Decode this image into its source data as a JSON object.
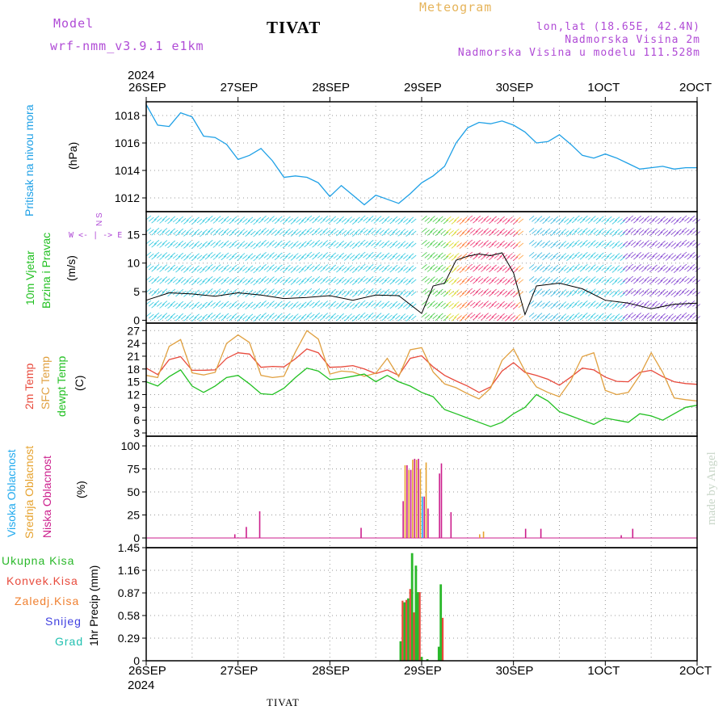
{
  "header": {
    "model_label": "Model",
    "model_name": "wrf-nmm_v3.9.1  e1km",
    "location": "TIVAT",
    "meteogram_label": "Meteogram",
    "coords": "lon,lat (18.65E, 42.4N)",
    "altitude": "Nadmorska Visina 2m",
    "model_altitude": "Nadmorska Visina u modelu 111.528m"
  },
  "footer": {
    "location": "TIVAT",
    "credit": "made by Angel"
  },
  "dates": {
    "year": "2024",
    "labels": [
      "26SEP",
      "27SEP",
      "28SEP",
      "29SEP",
      "30SEP",
      "1OCT",
      "2OCT"
    ]
  },
  "colors": {
    "pressure": "#1ea0e6",
    "temp2m": "#e84a3c",
    "sfc": "#e0a040",
    "dewpt": "#22c022",
    "high_cloud": "#22aaee",
    "mid_cloud": "#e6a22e",
    "low_cloud": "#cc1e8c",
    "total_precip": "#2ab82a",
    "conv_precip": "#e84a3c",
    "frozen": "#f08030",
    "snow": "#4040e0",
    "hail": "#20c0b0"
  },
  "panels": {
    "pressure": {
      "title": "Pritisak na nivou mora",
      "unit": "(hPa)",
      "ticks": [
        "1018",
        "1016",
        "1014",
        "1012"
      ]
    },
    "wind": {
      "title1": "10m Vjetar",
      "title2": "Brzina i Pravac",
      "unit": "(m/s)",
      "ticks": [
        "15",
        "10",
        "5",
        "0"
      ],
      "compass": "W <- | -> E",
      "compass_ns": "N  S"
    },
    "temp": {
      "title1": "2m Temp",
      "title2": "SFC Temp",
      "title3": "dewpt Temp",
      "unit": "(C)",
      "ticks": [
        "27",
        "24",
        "21",
        "18",
        "15",
        "12",
        "9",
        "6",
        "3"
      ]
    },
    "cloud": {
      "title1": "Visoka Oblacnost",
      "title2": "Srednja Oblacnost",
      "title3": "Niska Oblacnost",
      "unit": "(%)",
      "ticks": [
        "100",
        "75",
        "50",
        "25",
        "0"
      ]
    },
    "precip": {
      "title": "1hr Precip (mm)",
      "ticks": [
        "1.45",
        "1.16",
        "0.87",
        "0.58",
        "0.29",
        "0"
      ],
      "legend": [
        "Ukupna Kisa",
        "Konvek.Kisa",
        "Zaledj.Kisa",
        "Snijeg",
        "Grad"
      ]
    }
  },
  "chart_data": [
    {
      "type": "line",
      "title": "",
      "ylabel": "Pritisak na nivou mora (hPa)",
      "ylim": [
        1011,
        1019
      ],
      "x_hours": [
        0,
        3,
        6,
        9,
        12,
        15,
        18,
        21,
        24,
        27,
        30,
        33,
        36,
        39,
        42,
        45,
        48,
        51,
        54,
        57,
        60,
        63,
        66,
        69,
        72,
        75,
        78,
        81,
        84,
        87,
        90,
        93,
        96,
        99,
        102,
        105,
        108,
        111,
        114,
        117,
        120,
        123,
        126,
        129,
        132,
        135,
        138,
        141,
        144
      ],
      "series": [
        {
          "values": [
            1018.8,
            1017.3,
            1017.2,
            1018.2,
            1017.9,
            1016.5,
            1016.4,
            1015.9,
            1014.8,
            1015.1,
            1015.6,
            1014.7,
            1013.5,
            1013.6,
            1013.5,
            1013.1,
            1012.1,
            1012.9,
            1012.2,
            1011.5,
            1012.2,
            1011.9,
            1011.6,
            1012.3,
            1013.1,
            1013.6,
            1014.3,
            1016.0,
            1017.1,
            1017.5,
            1017.4,
            1017.6,
            1017.3,
            1016.8,
            1016.0,
            1016.1,
            1016.6,
            1015.9,
            1015.1,
            1014.9,
            1015.2,
            1014.9,
            1014.5,
            1014.1,
            1014.2,
            1014.3,
            1014.1,
            1014.2,
            1014.2
          ]
        }
      ]
    },
    {
      "type": "line",
      "title": "",
      "ylabel": "10m Vjetar Brzina i Pravac (m/s)",
      "ylim": [
        -0.5,
        19
      ],
      "x_hours": [
        0,
        6,
        12,
        18,
        24,
        30,
        36,
        42,
        48,
        54,
        60,
        66,
        72,
        75,
        78,
        81,
        84,
        87,
        90,
        93,
        96,
        99,
        102,
        108,
        114,
        120,
        126,
        132,
        138,
        144
      ],
      "series": [
        {
          "values": [
            3.5,
            4.8,
            4.6,
            4.2,
            4.8,
            4.4,
            3.8,
            4.0,
            4.3,
            3.5,
            4.4,
            4.3,
            1.2,
            6.0,
            6.5,
            10.5,
            11.2,
            11.6,
            11.3,
            11.8,
            8.3,
            1.0,
            6.0,
            6.5,
            5.5,
            3.5,
            3.0,
            2.0,
            2.8,
            3.0
          ]
        }
      ]
    },
    {
      "type": "line",
      "title": "",
      "ylabel": "Temperature (C)",
      "ylim": [
        3,
        28
      ],
      "x_hours": [
        0,
        3,
        6,
        9,
        12,
        15,
        18,
        21,
        24,
        27,
        30,
        33,
        36,
        39,
        42,
        45,
        48,
        51,
        54,
        57,
        60,
        63,
        66,
        69,
        72,
        75,
        78,
        81,
        84,
        87,
        90,
        93,
        96,
        99,
        102,
        105,
        108,
        111,
        114,
        117,
        120,
        123,
        126,
        129,
        132,
        135,
        138,
        141,
        144
      ],
      "series": [
        {
          "name": "2m Temp",
          "values": [
            18.2,
            16.7,
            20.2,
            20.9,
            17.7,
            17.7,
            17.8,
            20.5,
            21.8,
            21.5,
            18.4,
            18.6,
            18.5,
            20.4,
            22.7,
            21.8,
            18.4,
            18.5,
            18.8,
            18.0,
            16.9,
            17.8,
            16.5,
            20.5,
            21.1,
            18.5,
            16.5,
            15.2,
            14.0,
            12.5,
            13.8,
            17.5,
            19.5,
            17.2,
            16.5,
            15.6,
            14.2,
            16.1,
            18.2,
            17.8,
            16.1,
            15.1,
            15.0,
            17.2,
            17.7,
            16.2,
            15.0,
            14.6,
            14.4
          ]
        },
        {
          "name": "SFC Temp",
          "values": [
            16.5,
            16.0,
            23.3,
            24.9,
            17.1,
            16.6,
            17.2,
            24.0,
            26.0,
            24.2,
            16.5,
            16.0,
            16.3,
            22.0,
            27.0,
            25.0,
            16.8,
            17.5,
            17.3,
            16.3,
            17.0,
            20.5,
            16.2,
            22.5,
            23.0,
            17.3,
            14.5,
            13.6,
            12.2,
            11.0,
            13.5,
            20.0,
            22.7,
            17.5,
            13.8,
            12.5,
            11.5,
            15.3,
            20.9,
            21.8,
            13.0,
            12.0,
            12.5,
            16.5,
            21.8,
            17.2,
            11.2,
            10.8,
            10.5
          ]
        },
        {
          "name": "dewpt Temp",
          "values": [
            15.0,
            14.0,
            16.2,
            17.8,
            14.0,
            12.5,
            14.0,
            16.0,
            16.5,
            14.5,
            12.2,
            12.0,
            13.5,
            16.0,
            18.2,
            17.5,
            15.5,
            15.8,
            16.3,
            16.8,
            15.0,
            16.5,
            15.0,
            14.0,
            12.5,
            11.5,
            8.5,
            7.5,
            6.5,
            5.5,
            4.5,
            5.5,
            7.5,
            9.0,
            12.0,
            10.5,
            8.0,
            7.0,
            6.0,
            5.0,
            6.5,
            6.0,
            5.5,
            7.5,
            7.0,
            6.0,
            7.5,
            9.0,
            9.5
          ]
        }
      ]
    },
    {
      "type": "bar",
      "title": "",
      "ylabel": "Cloud cover (%)",
      "ylim": [
        0,
        100
      ],
      "series": [
        {
          "name": "Visoka Oblacnost",
          "points": [
            [
              72.0,
              45
            ]
          ]
        },
        {
          "name": "Srednja Oblacnost",
          "points": [
            [
              67.5,
              79
            ],
            [
              68.5,
              74
            ],
            [
              69.5,
              85
            ],
            [
              70.5,
              85
            ],
            [
              71.5,
              75
            ],
            [
              73.0,
              82
            ],
            [
              87.0,
              4
            ],
            [
              88.0,
              7
            ]
          ]
        },
        {
          "name": "Niska Oblacnost",
          "points": [
            [
              23.0,
              4
            ],
            [
              26.0,
              12
            ],
            [
              29.5,
              29
            ],
            [
              56.0,
              11
            ],
            [
              67.0,
              40
            ],
            [
              68.0,
              79
            ],
            [
              69.0,
              74
            ],
            [
              70.0,
              86
            ],
            [
              71.0,
              86
            ],
            [
              72.5,
              45
            ],
            [
              73.5,
              32
            ],
            [
              76.5,
              70
            ],
            [
              77.0,
              81
            ],
            [
              79.5,
              28
            ],
            [
              99.0,
              10
            ],
            [
              103.0,
              10
            ],
            [
              124.0,
              3
            ],
            [
              127.0,
              10
            ]
          ]
        }
      ]
    },
    {
      "type": "bar",
      "title": "",
      "ylabel": "1hr Precip (mm)",
      "ylim": [
        0,
        1.45
      ],
      "series": [
        {
          "name": "Ukupna Kisa",
          "points": [
            [
              66.5,
              0.25
            ],
            [
              67.5,
              0.75
            ],
            [
              68.5,
              0.8
            ],
            [
              69.5,
              1.38
            ],
            [
              70.5,
              1.22
            ],
            [
              71.0,
              0.88
            ],
            [
              72.0,
              0.05
            ],
            [
              73.5,
              0.02
            ],
            [
              76.5,
              0.18
            ],
            [
              77.0,
              0.98
            ]
          ]
        },
        {
          "name": "Konvek.Kisa",
          "points": [
            [
              67.0,
              0.77
            ],
            [
              68.0,
              0.78
            ],
            [
              69.0,
              0.92
            ],
            [
              70.0,
              0.62
            ],
            [
              71.5,
              0.88
            ],
            [
              77.5,
              0.55
            ]
          ]
        }
      ]
    }
  ]
}
